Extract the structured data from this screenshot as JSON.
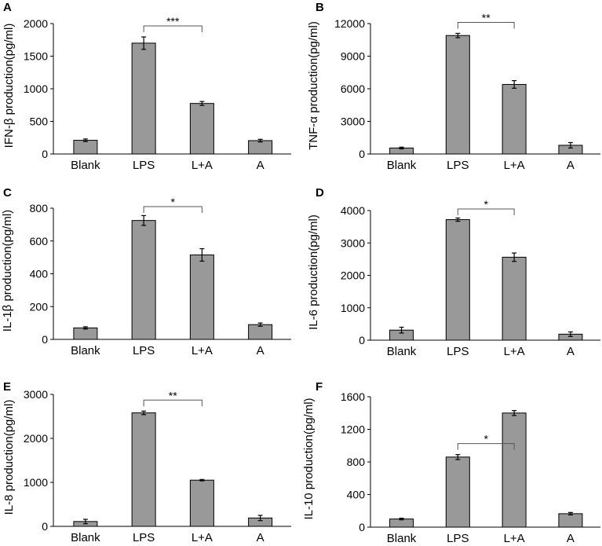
{
  "figure": {
    "background": "#ffffff",
    "bar_color": "#999999",
    "line_color": "#000000"
  },
  "chart_data": [
    {
      "panel": "A",
      "type": "bar",
      "categories": [
        "Blank",
        "LPS",
        "L+A",
        "A"
      ],
      "values": [
        210,
        1700,
        775,
        205
      ],
      "errors": [
        20,
        95,
        30,
        20
      ],
      "ylabel": "IFN-β production(pg/ml)",
      "ylim": [
        0,
        2000
      ],
      "yticks": [
        "0",
        "500",
        "1000",
        "1500",
        "2000"
      ],
      "significance": {
        "from": 1,
        "to": 2,
        "label": "***"
      }
    },
    {
      "panel": "B",
      "type": "bar",
      "categories": [
        "Blank",
        "LPS",
        "L+A",
        "A"
      ],
      "values": [
        550,
        10900,
        6400,
        800
      ],
      "errors": [
        80,
        200,
        350,
        250
      ],
      "ylabel": "TNF-α production(pg/ml)",
      "ylim": [
        0,
        12000
      ],
      "yticks": [
        "0",
        "3000",
        "6000",
        "9000",
        "12000"
      ],
      "significance": {
        "from": 1,
        "to": 2,
        "label": "**"
      }
    },
    {
      "panel": "C",
      "type": "bar",
      "categories": [
        "Blank",
        "LPS",
        "L+A",
        "A"
      ],
      "values": [
        70,
        725,
        515,
        90
      ],
      "errors": [
        7,
        30,
        38,
        10
      ],
      "ylabel": "IL-1β production(pg/ml)",
      "ylim": [
        0,
        800
      ],
      "yticks": [
        "0",
        "200",
        "400",
        "600",
        "800"
      ],
      "significance": {
        "from": 1,
        "to": 2,
        "label": "*"
      }
    },
    {
      "panel": "D",
      "type": "bar",
      "categories": [
        "Blank",
        "LPS",
        "L+A",
        "A"
      ],
      "values": [
        310,
        3720,
        2560,
        185
      ],
      "errors": [
        90,
        50,
        130,
        70
      ],
      "ylabel": "IL-6 production(pg/ml)",
      "ylim": [
        0,
        4000
      ],
      "yticks": [
        "0",
        "1000",
        "2000",
        "3000",
        "4000"
      ],
      "significance": {
        "from": 1,
        "to": 2,
        "label": "*"
      }
    },
    {
      "panel": "E",
      "type": "bar",
      "categories": [
        "Blank",
        "LPS",
        "L+A",
        "A"
      ],
      "values": [
        110,
        2580,
        1050,
        190
      ],
      "errors": [
        50,
        40,
        15,
        60
      ],
      "ylabel": "IL-8 production(pg/ml)",
      "ylim": [
        0,
        3000
      ],
      "yticks": [
        "0",
        "1000",
        "2000",
        "3000"
      ],
      "significance": {
        "from": 1,
        "to": 2,
        "label": "**"
      }
    },
    {
      "panel": "F",
      "type": "bar",
      "categories": [
        "Blank",
        "LPS",
        "L+A",
        "A"
      ],
      "values": [
        100,
        860,
        1400,
        165
      ],
      "errors": [
        10,
        30,
        30,
        15
      ],
      "ylabel": "IL-10 production(pg/ml)",
      "ylim": [
        0,
        1600
      ],
      "yticks": [
        "0",
        "400",
        "800",
        "1200",
        "1600"
      ],
      "significance": {
        "from": 1,
        "to": 2,
        "label": "*"
      }
    }
  ]
}
